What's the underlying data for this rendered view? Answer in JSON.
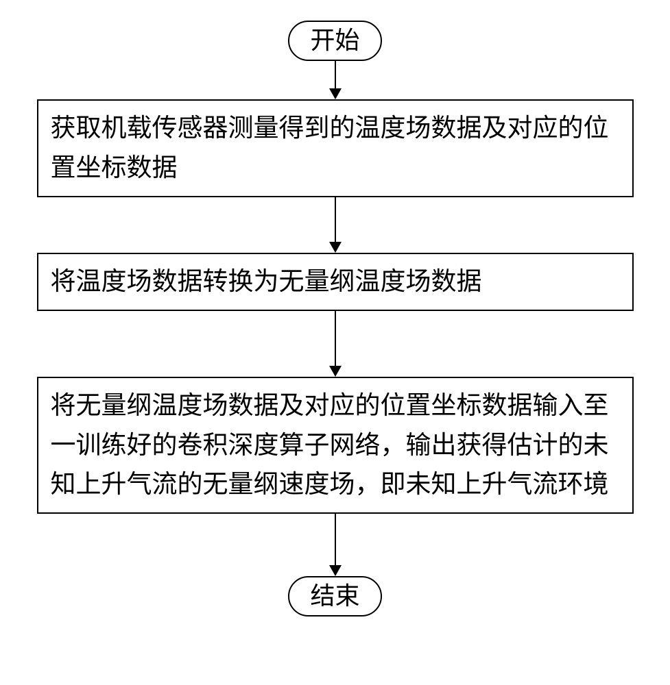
{
  "flowchart": {
    "type": "flowchart",
    "background_color": "#ffffff",
    "border_color": "#000000",
    "border_width": 2,
    "text_color": "#000000",
    "font_family": "SimSun",
    "font_size": 37,
    "terminal_font_size": 36,
    "nodes": {
      "start": {
        "type": "terminal",
        "label": "开始"
      },
      "step1": {
        "type": "process",
        "label": "获取机载传感器测量得到的温度场数据及对应的位置坐标数据"
      },
      "step2": {
        "type": "process",
        "label": "将温度场数据转换为无量纲温度场数据"
      },
      "step3": {
        "type": "process",
        "label": "将无量纲温度场数据及对应的位置坐标数据输入至一训练好的卷积深度算子网络，输出获得估计的未知上升气流的无量纲速度场，即未知上升气流环境"
      },
      "end": {
        "type": "terminal",
        "label": "结束"
      }
    },
    "edges": [
      {
        "from": "start",
        "to": "step1",
        "length": 40
      },
      {
        "from": "step1",
        "to": "step2",
        "length": 65
      },
      {
        "from": "step2",
        "to": "step3",
        "length": 80
      },
      {
        "from": "step3",
        "to": "end",
        "length": 75
      }
    ],
    "arrow_head_size": 16,
    "process_width": 870,
    "line_height": 1.55
  }
}
